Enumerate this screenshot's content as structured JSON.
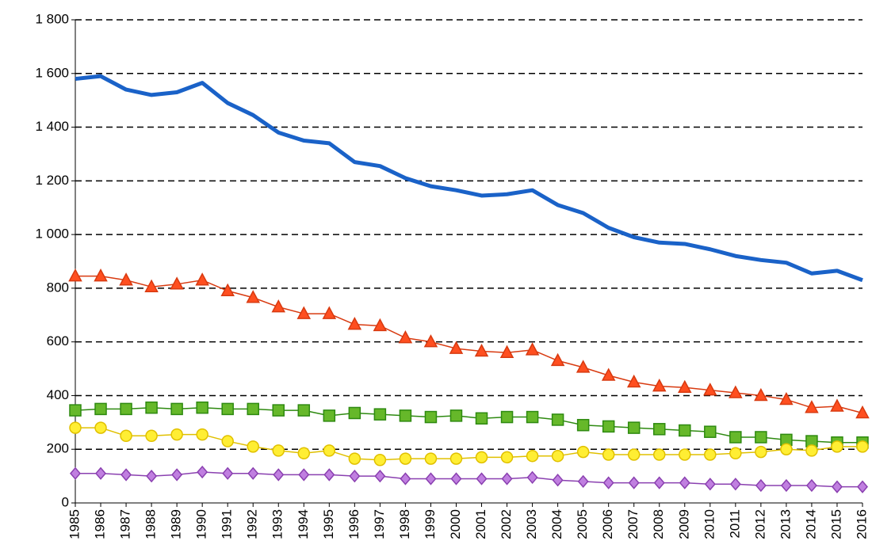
{
  "chart_data": {
    "type": "line",
    "categories": [
      "1985",
      "1986",
      "1987",
      "1988",
      "1989",
      "1990",
      "1991",
      "1992",
      "1993",
      "1994",
      "1995",
      "1996",
      "1997",
      "1998",
      "1999",
      "2000",
      "2001",
      "2002",
      "2003",
      "2004",
      "2005",
      "2006",
      "2007",
      "2008",
      "2009",
      "2010",
      "2011",
      "2012",
      "2013",
      "2014",
      "2015",
      "2016"
    ],
    "series": [
      {
        "color": "#1a62c8",
        "marker": "none",
        "values": [
          1580,
          1590,
          1540,
          1520,
          1530,
          1565,
          1490,
          1445,
          1380,
          1350,
          1340,
          1270,
          1255,
          1210,
          1180,
          1165,
          1145,
          1150,
          1165,
          1110,
          1080,
          1025,
          990,
          970,
          965,
          945,
          920,
          905,
          895,
          855,
          865,
          830
        ]
      },
      {
        "color": "#ff4f20",
        "marker": "triangle",
        "values": [
          845,
          845,
          830,
          805,
          815,
          830,
          790,
          765,
          730,
          705,
          705,
          665,
          660,
          615,
          600,
          575,
          565,
          560,
          570,
          530,
          505,
          475,
          450,
          435,
          430,
          420,
          410,
          400,
          385,
          355,
          360,
          335
        ]
      },
      {
        "color": "#66b82a",
        "marker": "square",
        "values": [
          345,
          350,
          350,
          355,
          350,
          355,
          350,
          350,
          345,
          345,
          325,
          335,
          330,
          325,
          320,
          325,
          315,
          320,
          320,
          310,
          290,
          285,
          280,
          275,
          270,
          265,
          245,
          245,
          235,
          230,
          225,
          225
        ]
      },
      {
        "color": "#ffee33",
        "marker": "circle",
        "values": [
          280,
          280,
          250,
          250,
          255,
          255,
          230,
          210,
          195,
          185,
          195,
          165,
          160,
          165,
          165,
          165,
          170,
          170,
          175,
          175,
          190,
          180,
          180,
          180,
          180,
          180,
          185,
          190,
          200,
          195,
          210,
          210
        ]
      },
      {
        "color": "#c07fe0",
        "marker": "diamond",
        "values": [
          110,
          110,
          105,
          100,
          105,
          115,
          110,
          110,
          105,
          105,
          105,
          100,
          100,
          90,
          90,
          90,
          90,
          90,
          95,
          85,
          80,
          75,
          75,
          75,
          75,
          70,
          70,
          65,
          65,
          65,
          60,
          60
        ]
      }
    ],
    "ylim": [
      0,
      1800
    ],
    "yticks": [
      0,
      200,
      400,
      600,
      800,
      {
        "value": 1000,
        "label": "1 000"
      },
      {
        "value": 1200,
        "label": "1 200"
      },
      {
        "value": 1400,
        "label": "1 400"
      },
      {
        "value": 1600,
        "label": "1 600"
      },
      {
        "value": 1800,
        "label": "1 800"
      }
    ],
    "grid": true
  }
}
